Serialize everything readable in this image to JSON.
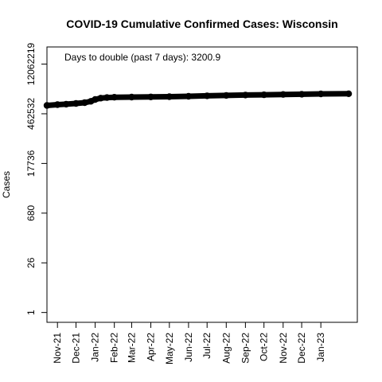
{
  "chart_data": {
    "type": "line",
    "title": "COVID-19 Cumulative Confirmed Cases: Wisconsin",
    "xlabel": "",
    "ylabel": "Cases",
    "y_scale": "log",
    "annotation": "Days to double (past 7 days): 3200.9",
    "y_ticks": [
      1,
      26,
      680,
      17736,
      462532,
      12062219
    ],
    "x_ticks": [
      {
        "date": "2021-11-01",
        "label": "Nov-21"
      },
      {
        "date": "2021-12-01",
        "label": "Dec-21"
      },
      {
        "date": "2022-01-01",
        "label": "Jan-22"
      },
      {
        "date": "2022-02-01",
        "label": "Feb-22"
      },
      {
        "date": "2022-03-01",
        "label": "Mar-22"
      },
      {
        "date": "2022-04-01",
        "label": "Apr-22"
      },
      {
        "date": "2022-05-01",
        "label": "May-22"
      },
      {
        "date": "2022-06-01",
        "label": "Jun-22"
      },
      {
        "date": "2022-07-01",
        "label": "Jul-22"
      },
      {
        "date": "2022-08-01",
        "label": "Aug-22"
      },
      {
        "date": "2022-09-01",
        "label": "Sep-22"
      },
      {
        "date": "2022-10-01",
        "label": "Oct-22"
      },
      {
        "date": "2022-11-01",
        "label": "Nov-22"
      },
      {
        "date": "2022-12-01",
        "label": "Dec-22"
      },
      {
        "date": "2023-01-01",
        "label": "Jan-23"
      }
    ],
    "xlim": [
      "2021-10-15",
      "2023-03-01"
    ],
    "ylim_log10": [
      -0.28,
      7.57
    ],
    "series": [
      {
        "color": "#000000",
        "points": [
          {
            "date": "2021-10-15",
            "value": 800000
          },
          {
            "date": "2021-11-01",
            "value": 840000
          },
          {
            "date": "2021-11-15",
            "value": 870000
          },
          {
            "date": "2021-12-01",
            "value": 910000
          },
          {
            "date": "2021-12-15",
            "value": 960000
          },
          {
            "date": "2021-12-25",
            "value": 1050000
          },
          {
            "date": "2022-01-01",
            "value": 1180000
          },
          {
            "date": "2022-01-10",
            "value": 1290000
          },
          {
            "date": "2022-01-20",
            "value": 1340000
          },
          {
            "date": "2022-02-01",
            "value": 1370000
          },
          {
            "date": "2022-03-01",
            "value": 1385000
          },
          {
            "date": "2022-04-01",
            "value": 1395000
          },
          {
            "date": "2022-05-01",
            "value": 1420000
          },
          {
            "date": "2022-06-01",
            "value": 1460000
          },
          {
            "date": "2022-07-01",
            "value": 1500000
          },
          {
            "date": "2022-08-01",
            "value": 1545000
          },
          {
            "date": "2022-09-01",
            "value": 1580000
          },
          {
            "date": "2022-10-01",
            "value": 1610000
          },
          {
            "date": "2022-11-01",
            "value": 1640000
          },
          {
            "date": "2022-12-01",
            "value": 1670000
          },
          {
            "date": "2023-01-01",
            "value": 1700000
          },
          {
            "date": "2023-02-15",
            "value": 1720000
          }
        ]
      }
    ]
  }
}
